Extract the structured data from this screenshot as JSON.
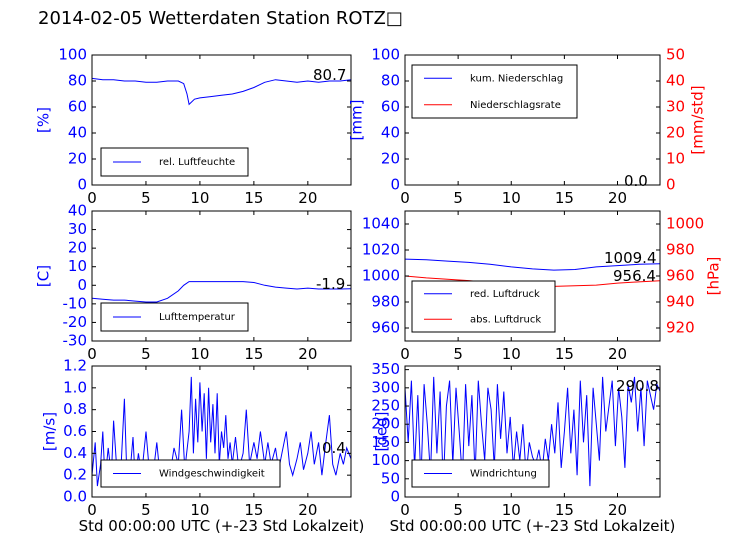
{
  "title": "2014-02-05 Wetterdaten Station ROTZ□",
  "chart_data": [
    {
      "id": "humidity",
      "type": "line",
      "xlim": [
        0,
        24
      ],
      "ylim": [
        0,
        100
      ],
      "xticks": [
        0,
        5,
        10,
        15,
        20
      ],
      "yticks": [
        0,
        20,
        40,
        60,
        80,
        100
      ],
      "ylabel": "[%]",
      "legend": "bottom-left",
      "annotation": "80.7",
      "series": [
        {
          "name": "rel. Luftfeuchte",
          "color": "#0000ff",
          "x": [
            0,
            1,
            2,
            3,
            4,
            5,
            6,
            7,
            8,
            8.5,
            8.8,
            9,
            9.5,
            10,
            11,
            12,
            13,
            14,
            15,
            16,
            17,
            18,
            19,
            20,
            21,
            22,
            23,
            24
          ],
          "y": [
            82,
            81,
            81,
            80,
            80,
            79,
            79,
            80,
            80,
            78,
            70,
            62,
            66,
            67,
            68,
            69,
            70,
            72,
            75,
            79,
            81,
            80,
            79,
            80,
            79,
            80,
            80,
            81
          ]
        }
      ]
    },
    {
      "id": "precip",
      "type": "line",
      "xlim": [
        0,
        24
      ],
      "ylim": [
        0,
        100
      ],
      "ylim_right": [
        0,
        50
      ],
      "xticks": [
        0,
        5,
        10,
        15,
        20
      ],
      "yticks": [
        0,
        20,
        40,
        60,
        80,
        100
      ],
      "yticks_right": [
        0,
        10,
        20,
        30,
        40,
        50
      ],
      "ylabel": "[mm]",
      "ylabel_right": "[mm/std]",
      "legend": "top-left",
      "annotation": "0.0",
      "series": [
        {
          "name": "kum. Niederschlag",
          "color": "#0000ff",
          "x": [
            0,
            24
          ],
          "y": [
            0,
            0
          ]
        },
        {
          "name": "Niederschlagsrate",
          "color": "#ff0000",
          "axis": "right",
          "x": [
            0,
            24
          ],
          "y": [
            0,
            0
          ]
        }
      ]
    },
    {
      "id": "temperature",
      "type": "line",
      "xlim": [
        0,
        24
      ],
      "ylim": [
        -30,
        40
      ],
      "xticks": [
        0,
        5,
        10,
        15,
        20
      ],
      "yticks": [
        -30,
        -20,
        -10,
        0,
        10,
        20,
        30,
        40
      ],
      "ylabel": "[C]",
      "legend": "bottom-left",
      "annotation": "-1.9",
      "series": [
        {
          "name": "Lufttemperatur",
          "color": "#0000ff",
          "x": [
            0,
            1,
            2,
            3,
            4,
            5,
            6,
            7,
            8,
            8.5,
            9,
            10,
            11,
            12,
            13,
            14,
            15,
            16,
            17,
            18,
            19,
            20,
            21,
            22,
            23,
            24
          ],
          "y": [
            -7,
            -7.5,
            -8,
            -8,
            -8.5,
            -9,
            -9,
            -7,
            -3,
            0,
            2,
            2,
            2,
            2,
            2,
            2,
            1.5,
            0,
            -1,
            -1.5,
            -2,
            -1.5,
            -2,
            -2,
            -2,
            -1.9
          ]
        }
      ]
    },
    {
      "id": "pressure",
      "type": "line",
      "xlim": [
        0,
        24
      ],
      "ylim": [
        950,
        1050
      ],
      "ylim_right": [
        910,
        1010
      ],
      "xticks": [
        0,
        5,
        10,
        15,
        20
      ],
      "yticks": [
        960,
        980,
        1000,
        1020,
        1040
      ],
      "yticks_right": [
        920,
        940,
        960,
        980,
        1000
      ],
      "ylabel_right": "[hPa]",
      "legend": "bottom-left",
      "annotations": [
        "1009.4",
        "956.4"
      ],
      "series": [
        {
          "name": "red. Luftdruck",
          "color": "#0000ff",
          "x": [
            0,
            2,
            4,
            6,
            8,
            10,
            12,
            14,
            16,
            18,
            20,
            22,
            24
          ],
          "y": [
            1013,
            1012.5,
            1011.5,
            1010.5,
            1009,
            1007,
            1005.5,
            1004.5,
            1005,
            1007,
            1008,
            1009,
            1009.4
          ]
        },
        {
          "name": "abs. Luftdruck",
          "color": "#ff0000",
          "axis": "right",
          "x": [
            0,
            2,
            4,
            6,
            8,
            10,
            12,
            14,
            16,
            18,
            20,
            22,
            24
          ],
          "y": [
            960,
            958.5,
            957.5,
            956.5,
            955,
            953.5,
            952.5,
            952,
            952.5,
            953,
            954.5,
            955.5,
            956.4
          ]
        }
      ]
    },
    {
      "id": "windspeed",
      "type": "line",
      "xlim": [
        0,
        24
      ],
      "ylim": [
        0,
        1.2
      ],
      "xticks": [
        0,
        5,
        10,
        15,
        20
      ],
      "yticks": [
        0.0,
        0.2,
        0.4,
        0.6,
        0.8,
        1.0,
        1.2
      ],
      "ylabel": "[m/s]",
      "xlabel": "Std 00:00:00 UTC (+-23 Std Lokalzeit)",
      "legend": "bottom-left",
      "annotation": "0.4",
      "series": [
        {
          "name": "Windgeschwindigkeit",
          "color": "#0000ff",
          "x": [
            0,
            0.3,
            0.5,
            0.8,
            1,
            1.2,
            1.5,
            1.8,
            2,
            2.3,
            2.6,
            3,
            3.2,
            3.5,
            3.8,
            4,
            4.3,
            4.6,
            5,
            5.3,
            5.6,
            6,
            6.3,
            6.6,
            7,
            7.3,
            7.6,
            8,
            8.3,
            8.6,
            9,
            9.2,
            9.4,
            9.6,
            9.8,
            10,
            10.2,
            10.4,
            10.6,
            10.8,
            11,
            11.2,
            11.4,
            11.6,
            11.8,
            12,
            12.2,
            12.4,
            12.6,
            12.8,
            13,
            13.3,
            13.6,
            14,
            14.3,
            14.6,
            15,
            15.3,
            15.6,
            16,
            16.3,
            16.6,
            17,
            17.3,
            17.6,
            18,
            18.3,
            18.6,
            19,
            19.3,
            19.6,
            20,
            20.3,
            20.6,
            21,
            21.3,
            21.6,
            22,
            22.3,
            22.6,
            23,
            23.3,
            23.6,
            24
          ],
          "y": [
            0.2,
            0.5,
            0.1,
            0.3,
            0.6,
            0.15,
            0.45,
            0.2,
            0.7,
            0.25,
            0.1,
            0.9,
            0.3,
            0.2,
            0.55,
            0.15,
            0.4,
            0.2,
            0.6,
            0.25,
            0.15,
            0.5,
            0.2,
            0.3,
            0.1,
            0.25,
            0.45,
            0.3,
            0.8,
            0.25,
            0.6,
            1.1,
            0.4,
            0.9,
            0.5,
            1.05,
            0.6,
            0.95,
            0.35,
            1.0,
            0.5,
            0.85,
            0.4,
            0.95,
            0.3,
            0.6,
            0.45,
            0.75,
            0.35,
            0.5,
            0.3,
            0.55,
            0.25,
            0.4,
            0.8,
            0.3,
            0.5,
            0.35,
            0.6,
            0.3,
            0.5,
            0.3,
            0.45,
            0.25,
            0.4,
            0.6,
            0.3,
            0.2,
            0.35,
            0.5,
            0.25,
            0.4,
            0.6,
            0.3,
            0.5,
            0.2,
            0.45,
            0.75,
            0.3,
            0.2,
            0.4,
            0.3,
            0.45,
            0.35
          ]
        }
      ]
    },
    {
      "id": "winddir",
      "type": "line",
      "xlim": [
        0,
        24
      ],
      "ylim": [
        0,
        360
      ],
      "xticks": [
        0,
        5,
        10,
        15,
        20
      ],
      "yticks": [
        0,
        50,
        100,
        150,
        200,
        250,
        300,
        350
      ],
      "ylabel": "[deg]",
      "xlabel": "Std 00:00:00 UTC (+-23 Std Lokalzeit)",
      "legend": "bottom-left",
      "annotation": "290.8",
      "series": [
        {
          "name": "Windrichtung",
          "color": "#0000ff",
          "x": [
            0,
            0.3,
            0.6,
            0.9,
            1.2,
            1.5,
            1.8,
            2.1,
            2.4,
            2.7,
            3,
            3.3,
            3.6,
            3.9,
            4.2,
            4.5,
            4.8,
            5.1,
            5.4,
            5.7,
            6,
            6.3,
            6.6,
            6.9,
            7.2,
            7.5,
            7.8,
            8.1,
            8.4,
            8.7,
            9,
            9.3,
            9.6,
            9.9,
            10.2,
            10.5,
            10.8,
            11.1,
            11.4,
            11.7,
            12,
            12.3,
            12.6,
            12.9,
            13.2,
            13.5,
            13.8,
            14.1,
            14.4,
            14.7,
            15,
            15.3,
            15.6,
            15.9,
            16.2,
            16.5,
            16.8,
            17.1,
            17.4,
            17.7,
            18,
            18.3,
            18.6,
            18.9,
            19.2,
            19.5,
            19.8,
            20.1,
            20.4,
            20.7,
            21,
            21.3,
            21.6,
            21.9,
            22.2,
            22.5,
            22.8,
            23.1,
            23.4,
            23.7,
            24
          ],
          "y": [
            300,
            150,
            320,
            80,
            280,
            40,
            310,
            200,
            60,
            330,
            120,
            290,
            30,
            250,
            320,
            90,
            300,
            180,
            50,
            310,
            140,
            280,
            60,
            320,
            200,
            100,
            300,
            240,
            80,
            310,
            160,
            290,
            120,
            220,
            80,
            180,
            100,
            200,
            60,
            150,
            110,
            90,
            130,
            70,
            160,
            100,
            200,
            120,
            260,
            80,
            180,
            300,
            120,
            240,
            60,
            320,
            150,
            280,
            30,
            300,
            200,
            100,
            330,
            180,
            250,
            320,
            140,
            300,
            220,
            80,
            310,
            260,
            330,
            180,
            300,
            140,
            320,
            280,
            240,
            310,
            290.8
          ]
        }
      ]
    }
  ]
}
